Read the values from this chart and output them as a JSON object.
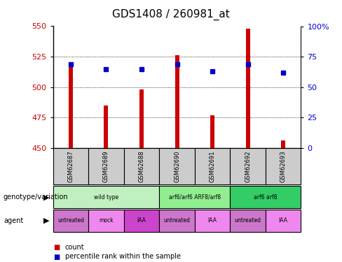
{
  "title": "GDS1408 / 260981_at",
  "samples": [
    "GSM62687",
    "GSM62689",
    "GSM62688",
    "GSM62690",
    "GSM62691",
    "GSM62692",
    "GSM62693"
  ],
  "bar_base": 450,
  "bar_tops": [
    519,
    485,
    498,
    526,
    477,
    548,
    456
  ],
  "percentile_pct": [
    69,
    65,
    65,
    69,
    63,
    69,
    62
  ],
  "ylim_left": [
    450,
    550
  ],
  "ylim_right": [
    0,
    100
  ],
  "yticks_left": [
    450,
    475,
    500,
    525,
    550
  ],
  "yticks_right": [
    0,
    25,
    50,
    75,
    100
  ],
  "bar_color": "#cc0000",
  "percentile_color": "#0000cc",
  "bar_width": 0.12,
  "genotype_spans": [
    {
      "label": "wild type",
      "start": 0,
      "end": 3,
      "color": "#c0f0c0"
    },
    {
      "label": "arf6/arf6 ARF8/arf8",
      "start": 3,
      "end": 5,
      "color": "#90ee90"
    },
    {
      "label": "arf6 arf8",
      "start": 5,
      "end": 7,
      "color": "#33cc66"
    }
  ],
  "agent_spans": [
    {
      "label": "untreated",
      "start": 0,
      "end": 1,
      "color": "#cc77cc"
    },
    {
      "label": "mock",
      "start": 1,
      "end": 2,
      "color": "#ee88ee"
    },
    {
      "label": "IAA",
      "start": 2,
      "end": 3,
      "color": "#cc44cc"
    },
    {
      "label": "untreated",
      "start": 3,
      "end": 4,
      "color": "#cc77cc"
    },
    {
      "label": "IAA",
      "start": 4,
      "end": 5,
      "color": "#ee88ee"
    },
    {
      "label": "untreated",
      "start": 5,
      "end": 6,
      "color": "#cc77cc"
    },
    {
      "label": "IAA",
      "start": 6,
      "end": 7,
      "color": "#ee88ee"
    }
  ],
  "ylabel_left_color": "#cc0000",
  "ylabel_right_color": "#0000cc",
  "sample_bg_color": "#cccccc",
  "sample_border_color": "#000000",
  "title_fontsize": 11,
  "tick_fontsize": 8,
  "sample_fontsize": 6,
  "row_label_fontsize": 7,
  "legend_fontsize": 7
}
